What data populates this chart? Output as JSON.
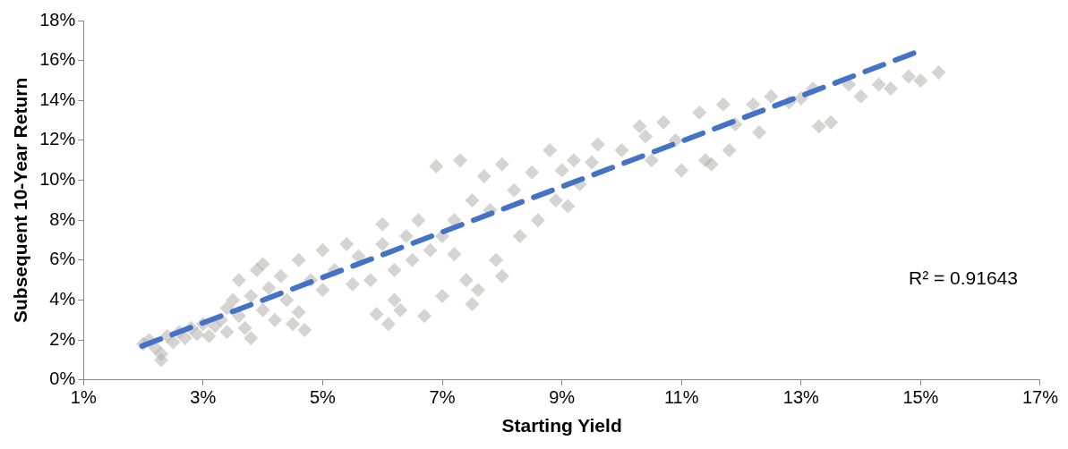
{
  "chart_data": {
    "type": "scatter",
    "xlabel": "Starting Yield",
    "ylabel": "Subsequent 10-Year Return",
    "xlim": [
      1,
      17
    ],
    "ylim": [
      0,
      18
    ],
    "xticks": [
      {
        "value": 1,
        "label": "1%"
      },
      {
        "value": 3,
        "label": "3%"
      },
      {
        "value": 5,
        "label": "5%"
      },
      {
        "value": 7,
        "label": "7%"
      },
      {
        "value": 9,
        "label": "9%"
      },
      {
        "value": 11,
        "label": "11%"
      },
      {
        "value": 13,
        "label": "13%"
      },
      {
        "value": 15,
        "label": "15%"
      },
      {
        "value": 17,
        "label": "17%"
      }
    ],
    "yticks": [
      {
        "value": 0,
        "label": "0%"
      },
      {
        "value": 2,
        "label": "2%"
      },
      {
        "value": 4,
        "label": "4%"
      },
      {
        "value": 6,
        "label": "6%"
      },
      {
        "value": 8,
        "label": "8%"
      },
      {
        "value": 10,
        "label": "10%"
      },
      {
        "value": 12,
        "label": "12%"
      },
      {
        "value": 14,
        "label": "14%"
      },
      {
        "value": 16,
        "label": "16%"
      },
      {
        "value": 18,
        "label": "18%"
      }
    ],
    "grid": false,
    "legend": false,
    "marker": "diamond",
    "annotations": [
      "R² = 0.91643"
    ],
    "series": [
      {
        "type": "scatter",
        "color": "#b3b0ae",
        "x": [
          2.0,
          2.1,
          2.2,
          2.3,
          2.3,
          2.4,
          2.5,
          2.6,
          2.7,
          2.8,
          2.9,
          3.0,
          3.1,
          3.2,
          3.3,
          3.4,
          3.4,
          3.5,
          3.6,
          3.6,
          3.7,
          3.8,
          3.8,
          3.9,
          4.0,
          4.0,
          4.1,
          4.2,
          4.3,
          4.4,
          4.5,
          4.6,
          4.6,
          4.7,
          4.8,
          5.0,
          5.0,
          5.2,
          5.4,
          5.5,
          5.6,
          5.8,
          5.9,
          6.0,
          6.0,
          6.1,
          6.2,
          6.2,
          6.3,
          6.4,
          6.5,
          6.6,
          6.7,
          6.8,
          6.9,
          7.0,
          7.0,
          7.2,
          7.2,
          7.3,
          7.4,
          7.5,
          7.5,
          7.6,
          7.7,
          7.8,
          7.9,
          8.0,
          8.0,
          8.2,
          8.3,
          8.5,
          8.6,
          8.8,
          8.9,
          9.0,
          9.1,
          9.2,
          9.3,
          9.5,
          9.6,
          10.0,
          10.3,
          10.4,
          10.5,
          10.7,
          10.9,
          11.0,
          11.3,
          11.4,
          11.5,
          11.7,
          11.8,
          11.9,
          12.2,
          12.3,
          12.5,
          12.8,
          13.0,
          13.2,
          13.3,
          13.5,
          13.8,
          14.0,
          14.3,
          14.5,
          14.8,
          15.0,
          15.3
        ],
        "values": [
          1.8,
          2.0,
          1.6,
          1.0,
          1.3,
          2.2,
          1.9,
          2.4,
          2.1,
          2.6,
          2.3,
          2.8,
          2.2,
          2.7,
          3.0,
          2.4,
          3.6,
          4.0,
          3.2,
          5.0,
          2.6,
          2.1,
          4.2,
          5.5,
          3.5,
          5.8,
          4.6,
          3.0,
          5.2,
          4.0,
          2.8,
          6.0,
          3.4,
          2.5,
          5.0,
          4.5,
          6.5,
          5.5,
          6.8,
          4.8,
          6.2,
          5.0,
          3.3,
          6.8,
          7.8,
          2.8,
          4.0,
          5.5,
          3.5,
          7.2,
          6.0,
          8.0,
          3.2,
          6.5,
          10.7,
          7.2,
          4.2,
          8.0,
          6.3,
          11.0,
          5.0,
          9.0,
          3.8,
          4.5,
          10.2,
          8.5,
          6.0,
          5.2,
          10.8,
          9.5,
          7.2,
          10.4,
          8.0,
          11.5,
          9.0,
          10.5,
          8.7,
          11.0,
          9.8,
          10.9,
          11.8,
          11.5,
          12.7,
          12.2,
          11.0,
          12.9,
          12.0,
          10.5,
          13.4,
          11.0,
          10.8,
          13.8,
          11.5,
          12.8,
          13.8,
          12.4,
          14.2,
          13.9,
          14.1,
          14.6,
          12.7,
          12.9,
          14.8,
          14.2,
          14.8,
          14.6,
          15.2,
          15.0,
          15.4
        ]
      },
      {
        "type": "line",
        "color": "#4472c4",
        "line_style": "dashed",
        "marker": "none",
        "x": [
          1.98,
          15.0
        ],
        "values": [
          1.7,
          16.5
        ]
      }
    ]
  }
}
